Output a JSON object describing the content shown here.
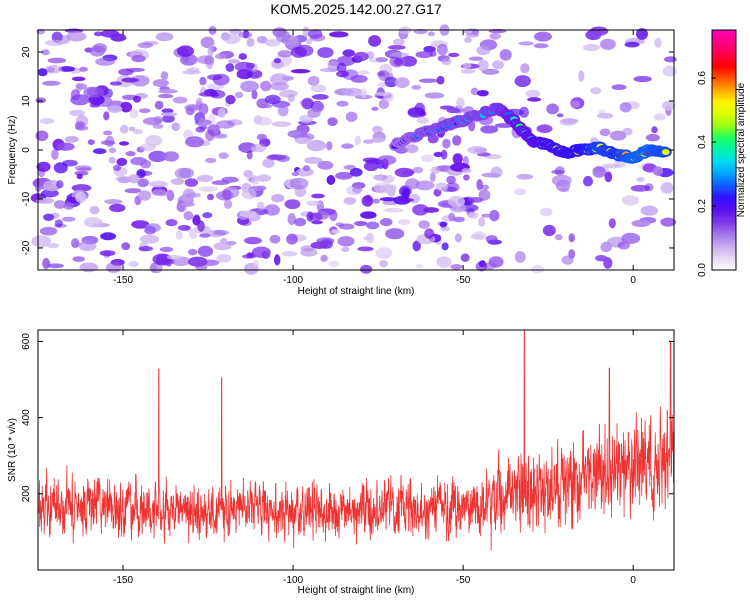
{
  "title": "KOM5.2025.142.00.27.G17",
  "colors": {
    "snr_line": "#ee3333",
    "axis": "#000000",
    "colormap": [
      "#ffffff",
      "#d8c4f2",
      "#a070ea",
      "#6a10e8",
      "#2a10ff",
      "#0090ff",
      "#00e8f0",
      "#00ff70",
      "#c0ff00",
      "#ffff00",
      "#ff8800",
      "#ff0000",
      "#ff0070",
      "#ff00b8"
    ]
  },
  "chart_data": [
    {
      "type": "heatmap",
      "title": "KOM5.2025.142.00.27.G17",
      "xlabel": "Height of straight line (km)",
      "ylabel": "Frequency (Hz)",
      "xlim": [
        -175,
        12
      ],
      "ylim": [
        -24.5,
        24.5
      ],
      "x_ticks": [
        -150,
        -100,
        -50,
        0
      ],
      "x_tick_labels": [
        "-150",
        "-100",
        "-50",
        "0"
      ],
      "y_ticks": [
        -20,
        -10,
        0,
        10,
        20
      ],
      "y_tick_labels": [
        "-20",
        "-10",
        "0",
        "10",
        "20"
      ],
      "colorbar": {
        "label": "Normalized spectral amplitude",
        "range": [
          0,
          0.75
        ],
        "ticks": [
          0,
          0.2,
          0.4,
          0.6
        ],
        "tick_labels": [
          "0.0",
          "0.2",
          "0.4",
          "0.6"
        ]
      },
      "ridge": {
        "x": [
          -70,
          -62,
          -55,
          -48,
          -40,
          -35,
          -30,
          -25,
          -20,
          -15,
          -10,
          -5,
          0,
          5,
          10
        ],
        "y": [
          1,
          3.5,
          5,
          6.5,
          8.5,
          6,
          2,
          1,
          -0.5,
          0,
          0.5,
          -1,
          -1.5,
          0,
          -0.5
        ],
        "amplitude": [
          0.22,
          0.28,
          0.3,
          0.3,
          0.32,
          0.38,
          0.42,
          0.48,
          0.5,
          0.55,
          0.62,
          0.6,
          0.66,
          0.65,
          0.62
        ]
      },
      "noise_amplitude_range": [
        0.05,
        0.2
      ]
    },
    {
      "type": "line",
      "xlabel": "Height of straight line (km)",
      "ylabel": "SNR (10 * v/v)",
      "xlim": [
        -175,
        12
      ],
      "ylim": [
        0,
        630
      ],
      "x_ticks": [
        -150,
        -100,
        -50,
        0
      ],
      "x_tick_labels": [
        "-150",
        "-100",
        "-50",
        "0"
      ],
      "y_ticks": [
        200,
        400,
        600
      ],
      "y_tick_labels": [
        "200",
        "400",
        "600"
      ],
      "series": [
        {
          "color": "#ee3333",
          "envelope_x": [
            -175,
            -150,
            -125,
            -100,
            -75,
            -50,
            -40,
            -30,
            -20,
            -10,
            0,
            10,
            12
          ],
          "envelope_mean": [
            170,
            165,
            160,
            155,
            155,
            160,
            190,
            210,
            230,
            250,
            270,
            290,
            300
          ],
          "envelope_spread": [
            90,
            90,
            85,
            85,
            85,
            95,
            110,
            120,
            130,
            135,
            140,
            150,
            150
          ],
          "peaks": [
            {
              "x": -139.5,
              "y": 528
            },
            {
              "x": -32,
              "y": 630
            },
            {
              "x": 11,
              "y": 600
            },
            {
              "x": -121,
              "y": 505
            },
            {
              "x": -7,
              "y": 530
            }
          ]
        }
      ]
    }
  ]
}
